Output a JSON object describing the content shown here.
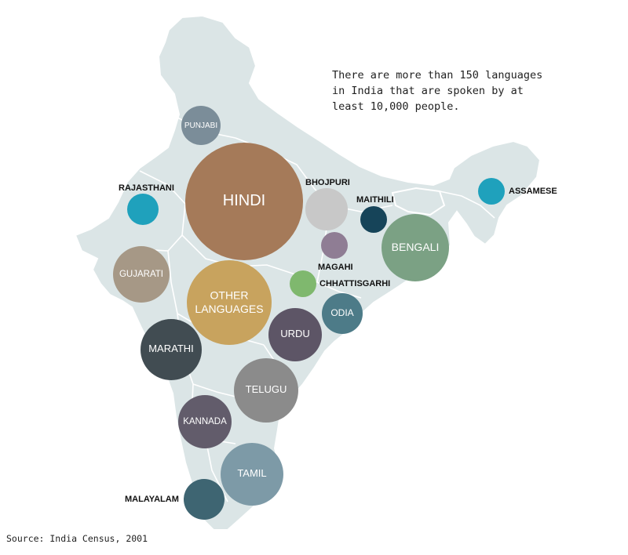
{
  "note": "There are more than 150 languages\nin India that are spoken by at\nleast 10,000 people.",
  "source": "Source: India Census, 2001",
  "colors": {
    "map_fill": "#dbe5e6",
    "map_border": "#ffffff"
  },
  "languages": [
    {
      "id": "hindi",
      "label": "HINDI",
      "color": "#a57a59"
    },
    {
      "id": "other-languages",
      "label": "OTHER\nLANGUAGES",
      "color": "#c8a35e"
    },
    {
      "id": "bengali",
      "label": "BENGALI",
      "color": "#7ba184"
    },
    {
      "id": "telugu",
      "label": "TELUGU",
      "color": "#8b8b8b"
    },
    {
      "id": "marathi",
      "label": "MARATHI",
      "color": "#414c52"
    },
    {
      "id": "tamil",
      "label": "TAMIL",
      "color": "#7d9aa7"
    },
    {
      "id": "urdu",
      "label": "URDU",
      "color": "#5d5566"
    },
    {
      "id": "gujarati",
      "label": "GUJARATI",
      "color": "#a69886"
    },
    {
      "id": "kannada",
      "label": "KANNADA",
      "color": "#625c6b"
    },
    {
      "id": "malayalam",
      "label": "MALAYALAM",
      "color": "#3e6572"
    },
    {
      "id": "odia",
      "label": "ODIA",
      "color": "#4d7b88"
    },
    {
      "id": "punjabi",
      "label": "PUNJABI",
      "color": "#7b8d99"
    },
    {
      "id": "bhojpuri",
      "label": "BHOJPURI",
      "color": "#c8c8c8"
    },
    {
      "id": "rajasthani",
      "label": "RAJASTHANI",
      "color": "#1fa1bc"
    },
    {
      "id": "assamese",
      "label": "ASSAMESE",
      "color": "#1fa1bc"
    },
    {
      "id": "maithili",
      "label": "MAITHILI",
      "color": "#164459"
    },
    {
      "id": "magahi",
      "label": "MAGAHI",
      "color": "#8f7d94"
    },
    {
      "id": "chhattisgarhi",
      "label": "CHHATTISGARHI",
      "color": "#7fb86e"
    }
  ]
}
